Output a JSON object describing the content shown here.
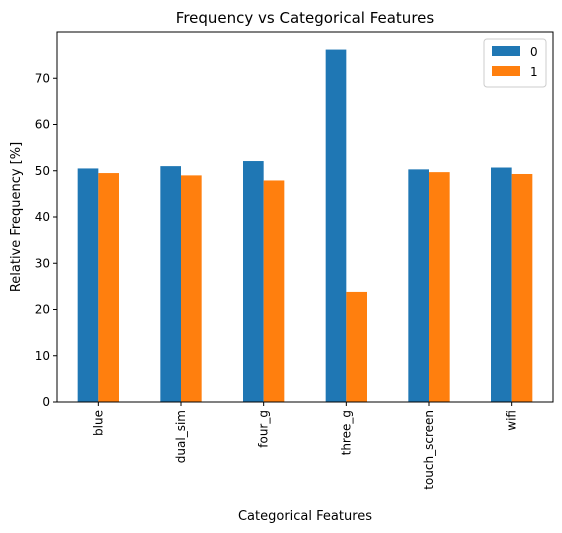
{
  "chart_data": {
    "type": "bar",
    "title": "Frequency vs Categorical Features",
    "xlabel": "Categorical Features",
    "ylabel": "Relative Frequency [%]",
    "categories": [
      "blue",
      "dual_sim",
      "four_g",
      "three_g",
      "touch_screen",
      "wifi"
    ],
    "series": [
      {
        "name": "0",
        "color": "#1f77b4",
        "values": [
          50.5,
          51.0,
          52.1,
          76.2,
          50.3,
          50.7
        ]
      },
      {
        "name": "1",
        "color": "#ff7f0e",
        "values": [
          49.5,
          49.0,
          47.9,
          23.8,
          49.7,
          49.3
        ]
      }
    ],
    "ylim": [
      0,
      80
    ],
    "yticks": [
      0,
      10,
      20,
      30,
      40,
      50,
      60,
      70
    ],
    "grid": false,
    "legend_position": "top-right"
  }
}
